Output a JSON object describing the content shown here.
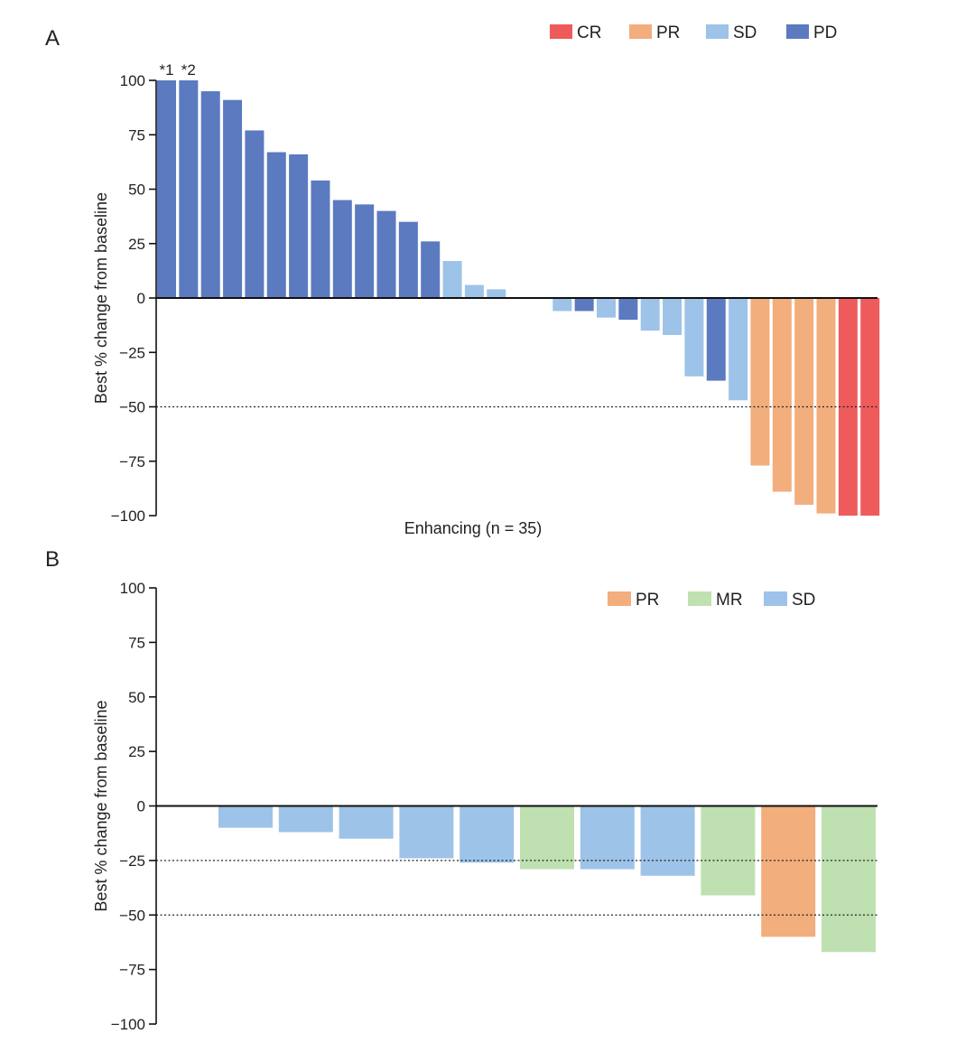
{
  "chart_data": [
    {
      "panel": "A",
      "type": "bar",
      "ylabel": "Best % change from baseline",
      "xlabel": "Enhancing (n = 35)",
      "ylim": [
        -100,
        100
      ],
      "yticks": [
        100,
        75,
        50,
        25,
        0,
        -25,
        -50,
        -75,
        -100
      ],
      "ytick_labels": [
        "100",
        "75",
        "50",
        "25",
        "0",
        "−25",
        "−50",
        "−75",
        "−100"
      ],
      "reference_lines": [
        -50
      ],
      "legend": [
        {
          "key": "CR",
          "label": "CR",
          "color": "#ef5b5b"
        },
        {
          "key": "PR",
          "label": "PR",
          "color": "#f2ae7c"
        },
        {
          "key": "SD",
          "label": "SD",
          "color": "#9dc3e8"
        },
        {
          "key": "PD",
          "label": "PD",
          "color": "#5b7ac0"
        }
      ],
      "bars": [
        {
          "value": 100,
          "category": "PD",
          "annotation": "*1"
        },
        {
          "value": 100,
          "category": "PD",
          "annotation": "*2"
        },
        {
          "value": 95,
          "category": "PD"
        },
        {
          "value": 91,
          "category": "PD"
        },
        {
          "value": 77,
          "category": "PD"
        },
        {
          "value": 67,
          "category": "PD"
        },
        {
          "value": 66,
          "category": "PD"
        },
        {
          "value": 54,
          "category": "PD"
        },
        {
          "value": 45,
          "category": "PD"
        },
        {
          "value": 43,
          "category": "PD"
        },
        {
          "value": 40,
          "category": "PD"
        },
        {
          "value": 35,
          "category": "PD"
        },
        {
          "value": 26,
          "category": "PD"
        },
        {
          "value": 17,
          "category": "SD"
        },
        {
          "value": 6,
          "category": "SD"
        },
        {
          "value": 4,
          "category": "SD"
        },
        {
          "value": 0,
          "category": "SD"
        },
        {
          "value": 0,
          "category": "SD"
        },
        {
          "value": -6,
          "category": "SD"
        },
        {
          "value": -6,
          "category": "PD"
        },
        {
          "value": -9,
          "category": "SD"
        },
        {
          "value": -10,
          "category": "PD"
        },
        {
          "value": -15,
          "category": "SD"
        },
        {
          "value": -17,
          "category": "SD"
        },
        {
          "value": -36,
          "category": "SD"
        },
        {
          "value": -38,
          "category": "PD"
        },
        {
          "value": -47,
          "category": "SD"
        },
        {
          "value": -77,
          "category": "PR"
        },
        {
          "value": -89,
          "category": "PR"
        },
        {
          "value": -95,
          "category": "PR"
        },
        {
          "value": -99,
          "category": "PR"
        },
        {
          "value": -100,
          "category": "CR"
        },
        {
          "value": -100,
          "category": "CR"
        }
      ]
    },
    {
      "panel": "B",
      "type": "bar",
      "ylabel": "Best % change from baseline",
      "xlabel": "",
      "ylim": [
        -100,
        100
      ],
      "yticks": [
        100,
        75,
        50,
        25,
        0,
        -25,
        -50,
        -75,
        -100
      ],
      "ytick_labels": [
        "100",
        "75",
        "50",
        "25",
        "0",
        "−25",
        "−50",
        "−75",
        "−100"
      ],
      "reference_lines": [
        -25,
        -50
      ],
      "legend": [
        {
          "key": "PR",
          "label": "PR",
          "color": "#f2ae7c"
        },
        {
          "key": "MR",
          "label": "MR",
          "color": "#bfe0b0"
        },
        {
          "key": "SD",
          "label": "SD",
          "color": "#9dc3e8"
        }
      ],
      "bars": [
        {
          "value": -10,
          "category": "SD"
        },
        {
          "value": -12,
          "category": "SD"
        },
        {
          "value": -15,
          "category": "SD"
        },
        {
          "value": -24,
          "category": "SD"
        },
        {
          "value": -26,
          "category": "SD"
        },
        {
          "value": -29,
          "category": "MR"
        },
        {
          "value": -29,
          "category": "SD"
        },
        {
          "value": -32,
          "category": "SD"
        },
        {
          "value": -41,
          "category": "MR"
        },
        {
          "value": -60,
          "category": "PR"
        },
        {
          "value": -67,
          "category": "MR"
        }
      ]
    }
  ],
  "panel_labels": [
    "A",
    "B"
  ]
}
